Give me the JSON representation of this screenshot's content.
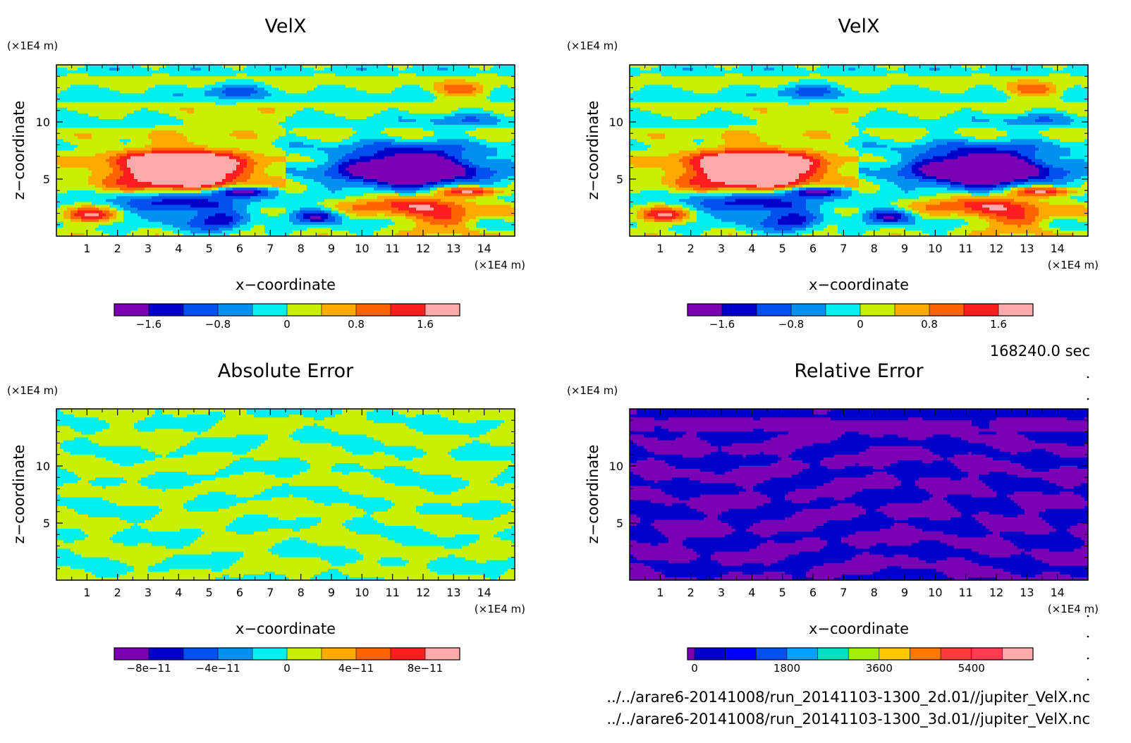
{
  "time_label": "168240.0 sec",
  "files": [
    "../../arare6-20141008/run_20141103-1300_2d.01//jupiter_VelX.nc",
    "../../arare6-20141008/run_20141103-1300_3d.01//jupiter_VelX.nc"
  ],
  "colors": {
    "velx_levels": [
      "#7b00b4",
      "#0000c8",
      "#0050f0",
      "#0090f0",
      "#00f0f0",
      "#c8f000",
      "#ffaa00",
      "#ff6400",
      "#ff1e1e",
      "#ffaaaa"
    ],
    "relerr_levels": [
      "#7b00b4",
      "#0000c8",
      "#0000ff",
      "#0050f0",
      "#00a0ff",
      "#00e0c0",
      "#a0f000",
      "#ffc800",
      "#ff7800",
      "#ff3c3c",
      "#ff3c50",
      "#ffaaaa"
    ]
  },
  "chart_data": [
    {
      "type": "heatmap",
      "title": "VelX",
      "xlabel": "x−coordinate",
      "ylabel": "z−coordinate",
      "x_unit": "(×1E4 m)",
      "y_unit": "(×1E4 m)",
      "xlim": [
        0,
        15
      ],
      "ylim": [
        0,
        15
      ],
      "xticks": [
        1,
        2,
        3,
        4,
        5,
        6,
        7,
        8,
        9,
        10,
        11,
        12,
        13,
        14
      ],
      "yticks": [
        5,
        10
      ],
      "colorbar": {
        "levels": [
          -2.0,
          -1.6,
          -1.2,
          -0.8,
          -0.4,
          0,
          0.4,
          0.8,
          1.2,
          1.6,
          2.0
        ],
        "tick_values": [
          -1.6,
          -0.8,
          0,
          0.8,
          1.6
        ],
        "tick_labels": [
          "−1.6",
          "−0.8",
          "0",
          "0.8",
          "1.6"
        ]
      }
    },
    {
      "type": "heatmap",
      "title": "VelX",
      "xlabel": "x−coordinate",
      "ylabel": "z−coordinate",
      "x_unit": "(×1E4 m)",
      "y_unit": "(×1E4 m)",
      "xlim": [
        0,
        15
      ],
      "ylim": [
        0,
        15
      ],
      "xticks": [
        1,
        2,
        3,
        4,
        5,
        6,
        7,
        8,
        9,
        10,
        11,
        12,
        13,
        14
      ],
      "yticks": [
        5,
        10
      ],
      "colorbar": {
        "levels": [
          -2.0,
          -1.6,
          -1.2,
          -0.8,
          -0.4,
          0,
          0.4,
          0.8,
          1.2,
          1.6,
          2.0
        ],
        "tick_values": [
          -1.6,
          -0.8,
          0,
          0.8,
          1.6
        ],
        "tick_labels": [
          "−1.6",
          "−0.8",
          "0",
          "0.8",
          "1.6"
        ]
      }
    },
    {
      "type": "heatmap",
      "title": "Absolute Error",
      "xlabel": "x−coordinate",
      "ylabel": "z−coordinate",
      "x_unit": "(×1E4 m)",
      "y_unit": "(×1E4 m)",
      "xlim": [
        0,
        15
      ],
      "ylim": [
        0,
        15
      ],
      "xticks": [
        1,
        2,
        3,
        4,
        5,
        6,
        7,
        8,
        9,
        10,
        11,
        12,
        13,
        14
      ],
      "yticks": [
        5,
        10
      ],
      "colorbar": {
        "levels": [
          -1e-10,
          -8e-11,
          -6e-11,
          -4e-11,
          -2e-11,
          0,
          2e-11,
          4e-11,
          6e-11,
          8e-11,
          1e-10
        ],
        "tick_values": [
          -8e-11,
          -4e-11,
          0,
          4e-11,
          8e-11
        ],
        "tick_labels": [
          "−8e−11",
          "−4e−11",
          "0",
          "4e−11",
          "8e−11"
        ]
      }
    },
    {
      "type": "heatmap",
      "title": "Relative Error",
      "xlabel": "x−coordinate",
      "ylabel": "z−coordinate",
      "x_unit": "(×1E4 m)",
      "y_unit": "(×1E4 m)",
      "xlim": [
        0,
        15
      ],
      "ylim": [
        0,
        15
      ],
      "xticks": [
        1,
        2,
        3,
        4,
        5,
        6,
        7,
        8,
        9,
        10,
        11,
        12,
        13,
        14
      ],
      "yticks": [
        5,
        10
      ],
      "colorbar": {
        "levels": [
          -100,
          0,
          600,
          1200,
          1800,
          2400,
          3000,
          3600,
          4200,
          4800,
          5400,
          6000,
          7000
        ],
        "tick_values": [
          0,
          1800,
          3600,
          5400
        ],
        "tick_labels": [
          "0",
          "1800",
          "3600",
          "5400"
        ]
      }
    }
  ]
}
